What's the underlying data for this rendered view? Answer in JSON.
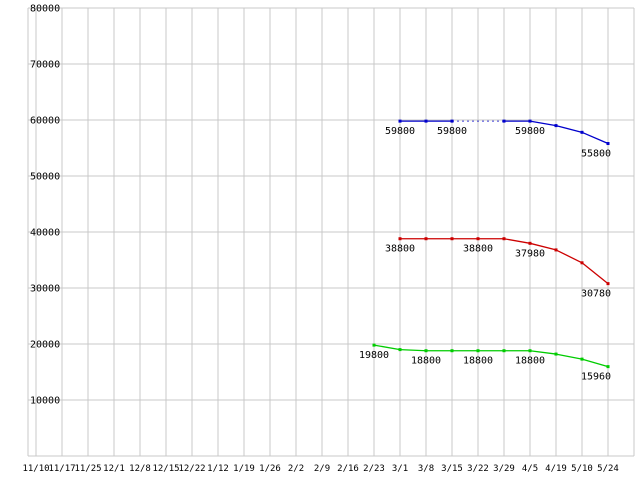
{
  "page": {
    "background": "#ffffff"
  },
  "chart_data": {
    "type": "line",
    "title": "",
    "xlabel": "",
    "ylabel": "",
    "grid": true,
    "legend": "none",
    "colors": {
      "grid": "#c8c8c8",
      "background": "#ffffff",
      "text": "#000000"
    },
    "y_axis": {
      "min": 0,
      "max": 80000,
      "step": 10000,
      "tick_labels": [
        "10000",
        "20000",
        "30000",
        "40000",
        "50000",
        "60000",
        "70000",
        "80000"
      ]
    },
    "x_categories": [
      "11/10",
      "11/17",
      "11/25",
      "12/1",
      "12/8",
      "12/15",
      "12/22",
      "1/12",
      "1/19",
      "1/26",
      "2/2",
      "2/9",
      "2/16",
      "2/23",
      "3/1",
      "3/8",
      "3/15",
      "3/22",
      "3/29",
      "4/5",
      "4/19",
      "5/10",
      "5/24"
    ],
    "series": [
      {
        "name": "series-blue",
        "color": "#0000cc",
        "values": [
          null,
          null,
          null,
          null,
          null,
          null,
          null,
          null,
          null,
          null,
          null,
          null,
          null,
          null,
          59800,
          59800,
          59800,
          null,
          59800,
          59800,
          59000,
          57800,
          55800
        ]
      },
      {
        "name": "series-red",
        "color": "#cc0000",
        "values": [
          null,
          null,
          null,
          null,
          null,
          null,
          null,
          null,
          null,
          null,
          null,
          null,
          null,
          null,
          38800,
          38800,
          38800,
          38800,
          38800,
          37980,
          36800,
          34500,
          30780
        ]
      },
      {
        "name": "series-green",
        "color": "#00cc00",
        "values": [
          null,
          null,
          null,
          null,
          null,
          null,
          null,
          null,
          null,
          null,
          null,
          null,
          null,
          19800,
          19000,
          18800,
          18800,
          18800,
          18800,
          18800,
          18200,
          17300,
          15960
        ]
      }
    ],
    "point_labels": [
      {
        "series": 0,
        "index": 14,
        "text": "59800"
      },
      {
        "series": 0,
        "index": 16,
        "text": "59800"
      },
      {
        "series": 0,
        "index": 19,
        "text": "59800"
      },
      {
        "series": 0,
        "index": 22,
        "text": "55800"
      },
      {
        "series": 1,
        "index": 14,
        "text": "38800"
      },
      {
        "series": 1,
        "index": 17,
        "text": "38800"
      },
      {
        "series": 1,
        "index": 19,
        "text": "37980"
      },
      {
        "series": 1,
        "index": 22,
        "text": "30780"
      },
      {
        "series": 2,
        "index": 13,
        "text": "19800"
      },
      {
        "series": 2,
        "index": 15,
        "text": "18800"
      },
      {
        "series": 2,
        "index": 17,
        "text": "18800"
      },
      {
        "series": 2,
        "index": 19,
        "text": "18800"
      },
      {
        "series": 2,
        "index": 22,
        "text": "15960"
      }
    ]
  }
}
